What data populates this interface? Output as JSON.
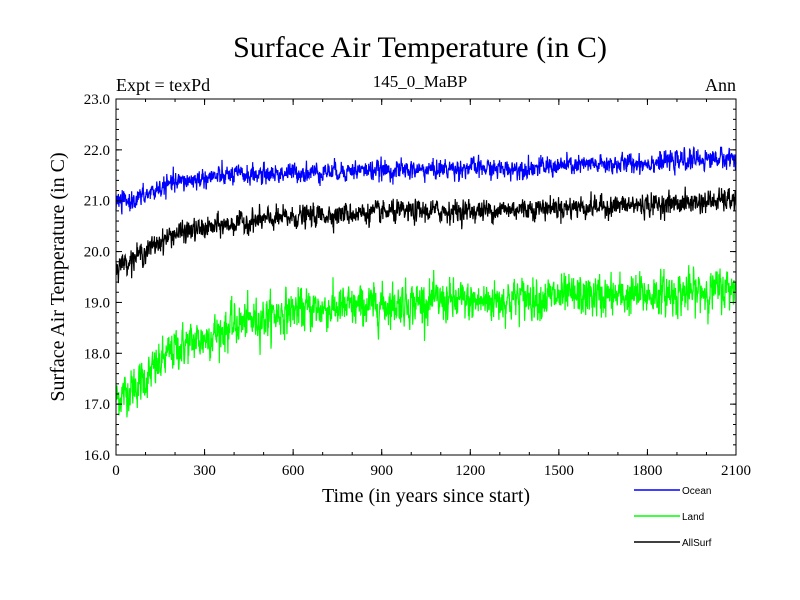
{
  "chart_data": {
    "type": "line",
    "title": "Surface Air Temperature (in C)",
    "subtitle": "145_0_MaBP",
    "left_label": "Expt = texPd",
    "right_label": "Ann",
    "xlabel": "Time (in years since start)",
    "ylabel": "Surface Air Temperature (in C)",
    "xlim": [
      0,
      2100
    ],
    "ylim": [
      16.0,
      23.0
    ],
    "x_ticks": [
      0,
      300,
      600,
      900,
      1200,
      1500,
      1800,
      2100
    ],
    "x_tick_labels": [
      "0",
      "300",
      "600",
      "900",
      "1200",
      "1500",
      "1800",
      "2100"
    ],
    "y_ticks": [
      16.0,
      17.0,
      18.0,
      19.0,
      20.0,
      21.0,
      22.0,
      23.0
    ],
    "y_tick_labels": [
      "16.0",
      "17.0",
      "18.0",
      "19.0",
      "20.0",
      "21.0",
      "22.0",
      "23.0"
    ],
    "grid": false,
    "legend_position": "bottom-right",
    "x": [
      0,
      50,
      100,
      150,
      200,
      300,
      400,
      500,
      600,
      700,
      800,
      900,
      1000,
      1100,
      1200,
      1300,
      1400,
      1500,
      1600,
      1700,
      1800,
      1900,
      2000,
      2100
    ],
    "series": [
      {
        "name": "Ocean",
        "color": "#0000ff",
        "values": [
          20.95,
          21.0,
          21.1,
          21.25,
          21.35,
          21.45,
          21.5,
          21.52,
          21.55,
          21.57,
          21.6,
          21.6,
          21.6,
          21.62,
          21.65,
          21.62,
          21.65,
          21.68,
          21.7,
          21.72,
          21.75,
          21.78,
          21.82,
          21.85
        ]
      },
      {
        "name": "Land",
        "color": "#00ff00",
        "values": [
          17.1,
          17.3,
          17.5,
          17.8,
          18.1,
          18.3,
          18.55,
          18.7,
          18.85,
          18.88,
          18.9,
          18.95,
          19.0,
          19.02,
          19.0,
          19.05,
          19.1,
          19.1,
          19.12,
          19.12,
          19.15,
          19.18,
          19.22,
          19.3
        ]
      },
      {
        "name": "AllSurf",
        "color": "#000000",
        "values": [
          19.7,
          19.85,
          20.0,
          20.2,
          20.35,
          20.45,
          20.55,
          20.62,
          20.68,
          20.72,
          20.75,
          20.77,
          20.78,
          20.8,
          20.8,
          20.82,
          20.85,
          20.87,
          20.88,
          20.9,
          20.92,
          20.95,
          20.98,
          21.02
        ]
      }
    ]
  }
}
